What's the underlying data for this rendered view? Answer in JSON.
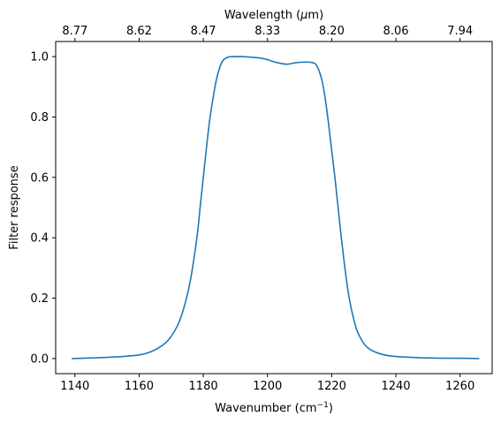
{
  "chart_data": {
    "type": "line",
    "xlabel": "Wavenumber (cm",
    "xlabel_sup": "−1",
    "xlabel_end": ")",
    "ylabel": "Filter response",
    "top_axis_label_pre": "Wavelength (",
    "top_axis_label_mu": "μ",
    "top_axis_label_post": "m)",
    "x_ticks": [
      1140,
      1160,
      1180,
      1200,
      1220,
      1240,
      1260
    ],
    "y_ticks": [
      "0.0",
      "0.2",
      "0.4",
      "0.6",
      "0.8",
      "1.0"
    ],
    "top_ticks": [
      {
        "wavenumber": 1140,
        "label": "8.77"
      },
      {
        "wavenumber": 1160,
        "label": "8.62"
      },
      {
        "wavenumber": 1180,
        "label": "8.47"
      },
      {
        "wavenumber": 1200,
        "label": "8.33"
      },
      {
        "wavenumber": 1220,
        "label": "8.20"
      },
      {
        "wavenumber": 1240,
        "label": "8.06"
      },
      {
        "wavenumber": 1260,
        "label": "7.94"
      }
    ],
    "xlim": [
      1134,
      1270
    ],
    "ylim": [
      -0.05,
      1.05
    ],
    "color": "#1f77b4",
    "series": [
      {
        "x": [
          1139,
          1145,
          1150,
          1155,
          1160,
          1163,
          1166,
          1169,
          1172,
          1174,
          1176,
          1178,
          1179,
          1180,
          1181,
          1182,
          1183,
          1184,
          1185,
          1186,
          1187,
          1188,
          1189,
          1190,
          1192,
          1195,
          1198,
          1200,
          1203,
          1206,
          1209,
          1212,
          1214,
          1215,
          1216,
          1217,
          1218,
          1219,
          1220,
          1221,
          1222,
          1223,
          1224,
          1225,
          1226,
          1227,
          1228,
          1230,
          1232,
          1235,
          1238,
          1241,
          1245,
          1250,
          1256,
          1260,
          1266
        ],
        "y": [
          0.0,
          0.002,
          0.004,
          0.007,
          0.012,
          0.02,
          0.035,
          0.06,
          0.11,
          0.17,
          0.26,
          0.4,
          0.5,
          0.6,
          0.7,
          0.79,
          0.86,
          0.92,
          0.96,
          0.985,
          0.995,
          0.999,
          1.0,
          1.0,
          1.0,
          0.998,
          0.995,
          0.99,
          0.98,
          0.975,
          0.98,
          0.982,
          0.98,
          0.975,
          0.955,
          0.92,
          0.86,
          0.78,
          0.69,
          0.6,
          0.5,
          0.4,
          0.31,
          0.23,
          0.17,
          0.125,
          0.09,
          0.05,
          0.03,
          0.016,
          0.009,
          0.006,
          0.004,
          0.002,
          0.001,
          0.001,
          0.0
        ]
      }
    ]
  }
}
